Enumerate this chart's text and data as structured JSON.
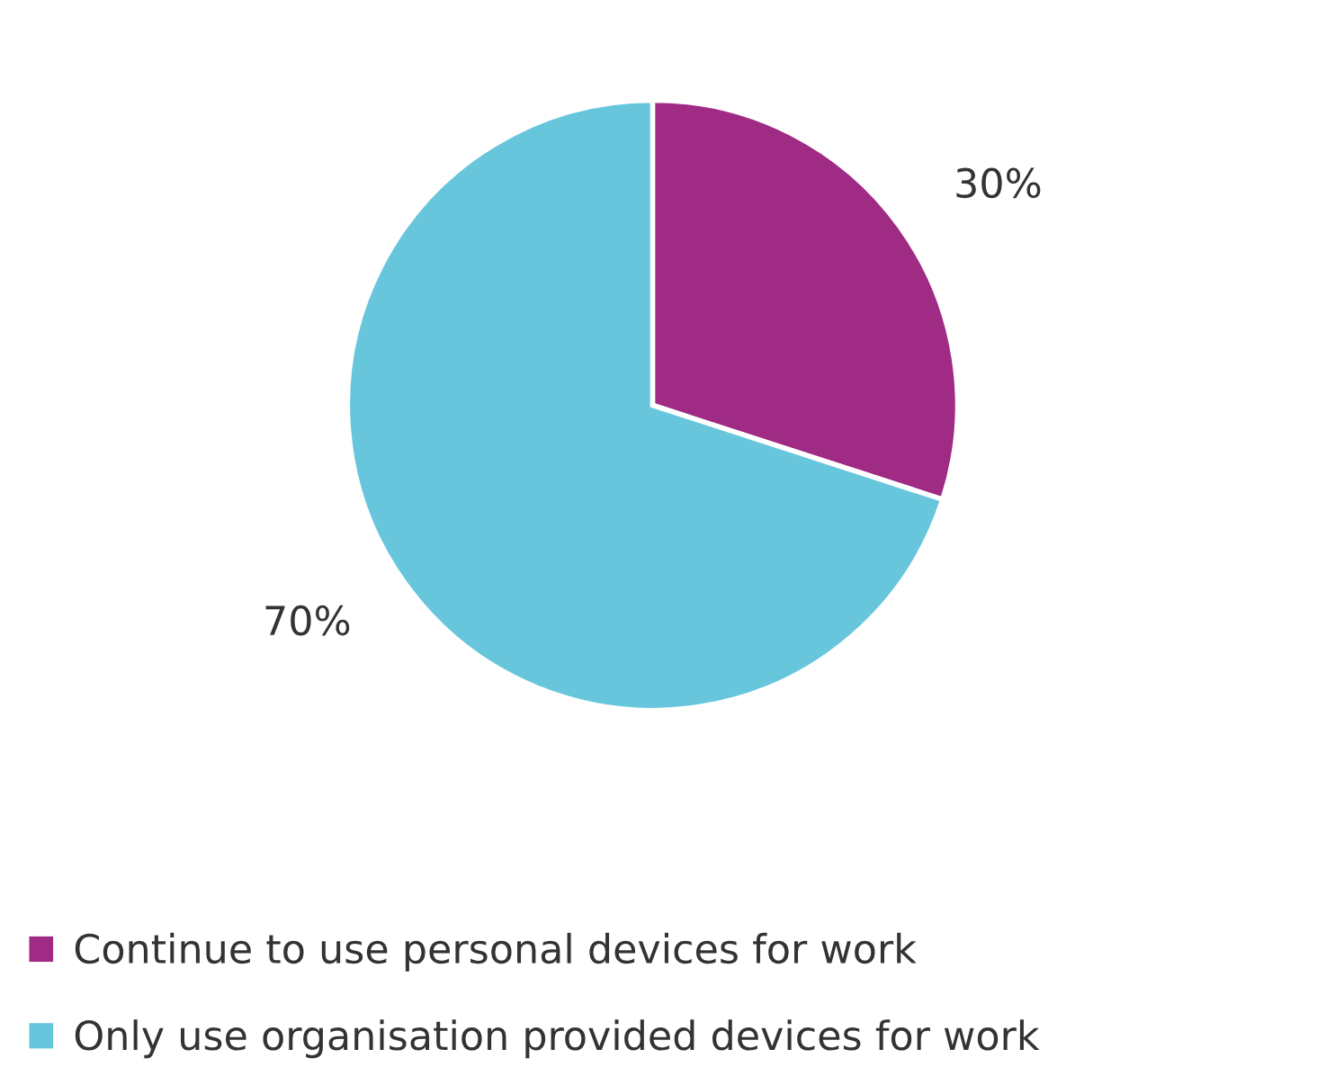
{
  "chart_data": {
    "type": "pie",
    "categories": [
      "Continue to use personal devices for work",
      "Only use organisation provided devices for work"
    ],
    "values": [
      30,
      70
    ],
    "colors": [
      "#a02b85",
      "#68c6dc"
    ],
    "value_labels": [
      "30%",
      "70%"
    ],
    "legend": "bottom"
  }
}
